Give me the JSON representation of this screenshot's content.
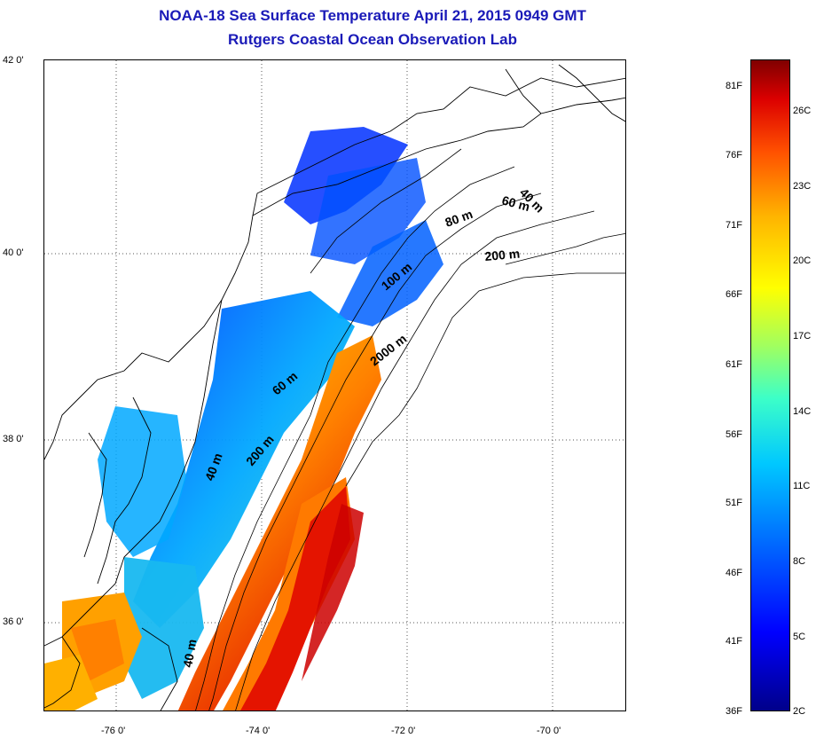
{
  "title": {
    "line1": "NOAA-18 Sea Surface Temperature April 21, 2015 0949 GMT",
    "line2": "Rutgers Coastal Ocean Observation Lab"
  },
  "axes": {
    "lat_labels": [
      "42 0'",
      "40 0'",
      "38 0'",
      "36 0'"
    ],
    "lon_labels": [
      "-76 0'",
      "-74 0'",
      "-72 0'",
      "-70 0'"
    ]
  },
  "depth_contours": [
    "40 m",
    "60 m",
    "80 m",
    "200 m",
    "100 m",
    "2000 m",
    "60 m",
    "200 m",
    "40 m",
    "40 m"
  ],
  "colorbar": {
    "fahrenheit": [
      "81F",
      "76F",
      "71F",
      "66F",
      "61F",
      "56F",
      "51F",
      "46F",
      "41F",
      "36F"
    ],
    "celsius": [
      "26C",
      "23C",
      "20C",
      "17C",
      "14C",
      "11C",
      "8C",
      "5C",
      "2C"
    ],
    "colors": [
      "#00008a",
      "#0000ff",
      "#00c8ff",
      "#ffff00",
      "#ff5000",
      "#800000"
    ]
  }
}
